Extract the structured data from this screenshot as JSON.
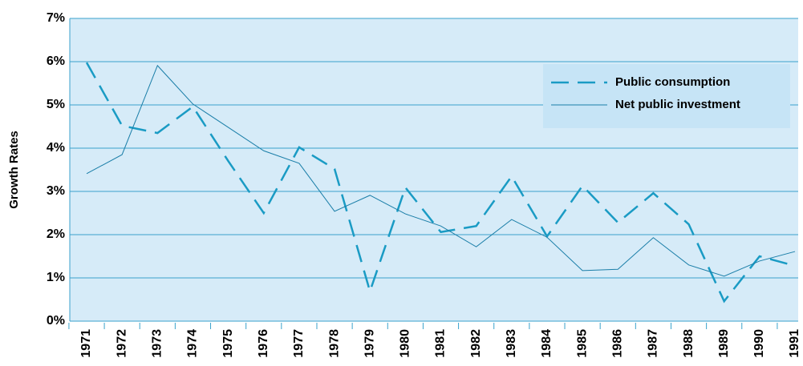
{
  "chart_data": {
    "type": "line",
    "y_label": "Growth Rates",
    "categories": [
      "1971",
      "1972",
      "1973",
      "1974",
      "1975",
      "1976",
      "1977",
      "1978",
      "1979",
      "1980",
      "1981",
      "1982",
      "1983",
      "1984",
      "1985",
      "1986",
      "1987",
      "1988",
      "1989",
      "1990",
      "1991"
    ],
    "series": [
      {
        "name": "Public consumption",
        "color": "#1a9bc4",
        "dashed": true,
        "values": [
          5.98,
          4.52,
          4.35,
          4.96,
          3.7,
          2.5,
          4.02,
          3.52,
          0.69,
          3.09,
          2.06,
          2.2,
          3.35,
          1.96,
          3.13,
          2.28,
          2.96,
          2.24,
          0.46,
          1.5,
          1.28
        ]
      },
      {
        "name": "Net public investment",
        "color": "#1a7ea8",
        "dashed": false,
        "values": [
          3.41,
          3.85,
          5.91,
          5.02,
          4.48,
          3.94,
          3.65,
          2.54,
          2.91,
          2.48,
          2.2,
          1.72,
          2.35,
          1.94,
          1.17,
          1.2,
          1.93,
          1.3,
          1.04,
          1.39,
          1.61
        ]
      }
    ],
    "ylim": [
      0,
      7
    ],
    "yticks": [
      {
        "value": 0,
        "label": "0%"
      },
      {
        "value": 1,
        "label": "1%"
      },
      {
        "value": 2,
        "label": "2%"
      },
      {
        "value": 3,
        "label": "3%"
      },
      {
        "value": 4,
        "label": "4%"
      },
      {
        "value": 5,
        "label": "5%"
      },
      {
        "value": 6,
        "label": "6%"
      },
      {
        "value": 7,
        "label": "7%"
      }
    ],
    "grid": true,
    "legend": "upper-right",
    "background": "#d6ebf8",
    "grid_color": "#3aa2cc"
  }
}
